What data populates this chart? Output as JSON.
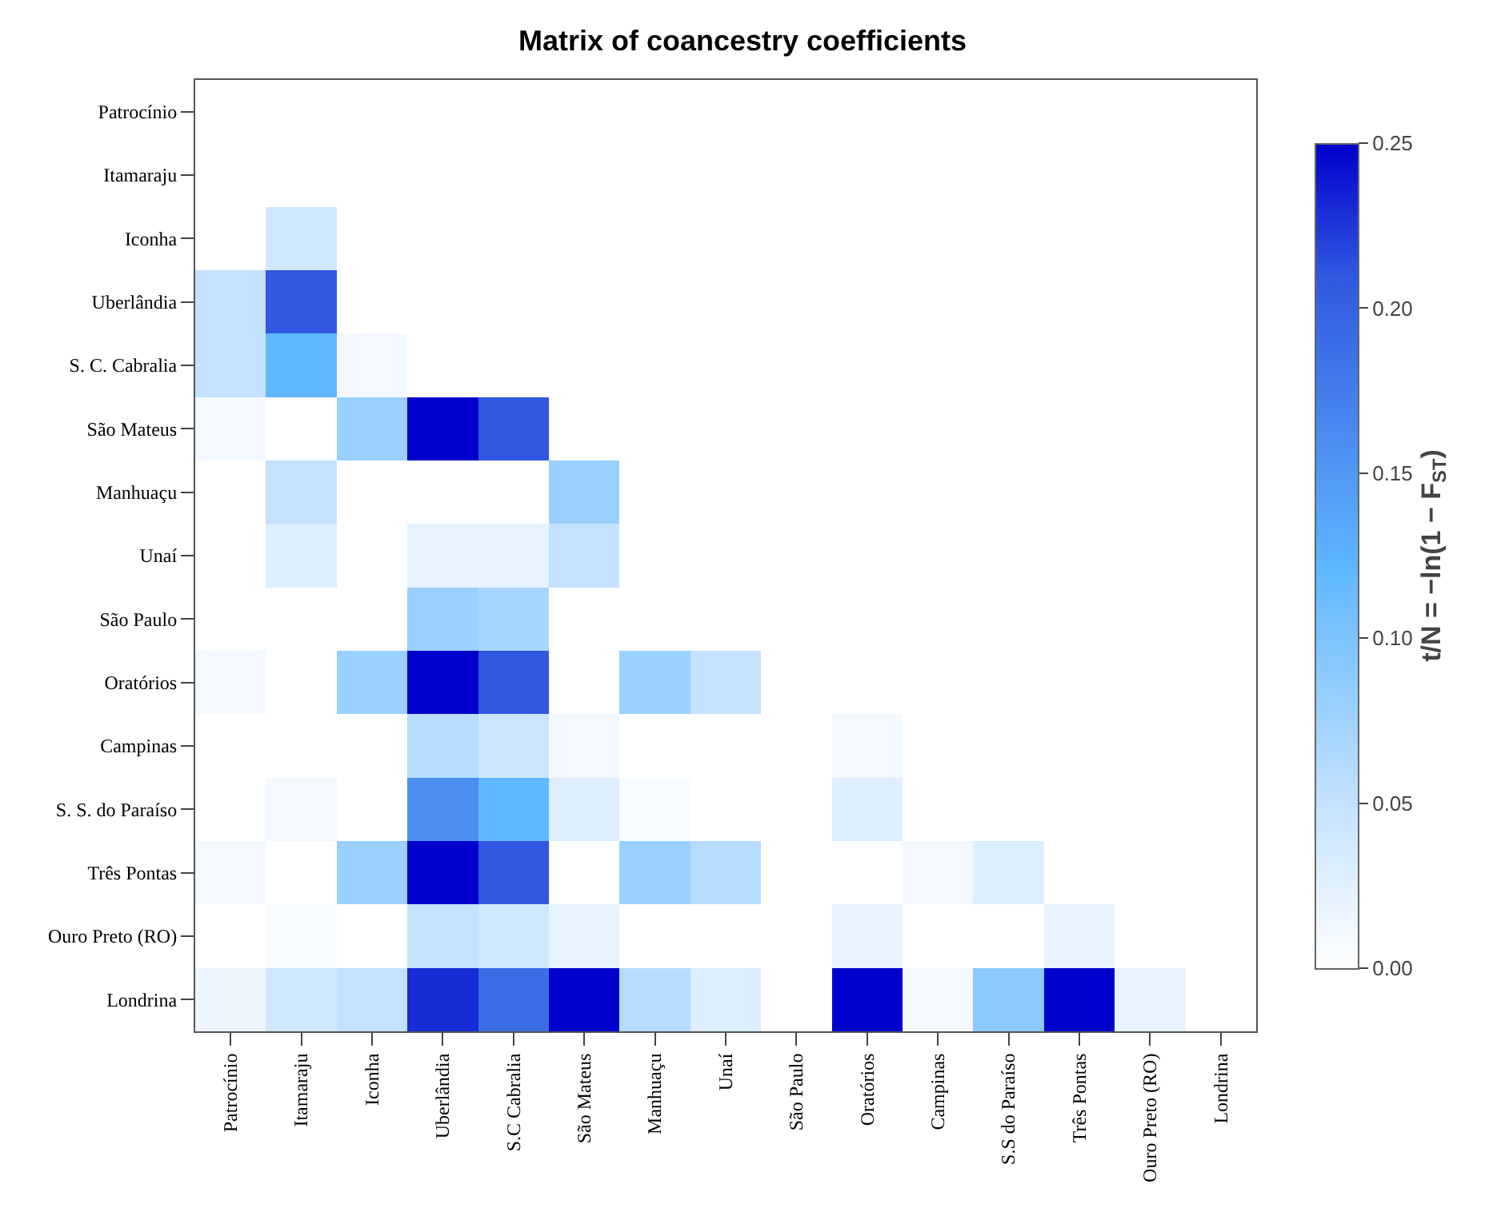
{
  "chart_data": {
    "type": "heatmap",
    "title": "Matrix of coancestry coefficients",
    "clabel": "t/N = −ln(1 − F$_{ST}$)",
    "categories": [
      "Patrocínio",
      "Itamaraju",
      "Iconha",
      "Uberlândia",
      "S.C Cabralia",
      "São Mateus",
      "Manhuaçu",
      "Unaí",
      "São Paulo",
      "Oratórios",
      "Campinas",
      "S.S do Paraíso",
      "Três Pontas",
      "Ouro Preto (RO)",
      "Londrina"
    ],
    "y_categories": [
      "Patrocínio",
      "Itamaraju",
      "Iconha",
      "Uberlândia",
      "S. C. Cabralia",
      "São Mateus",
      "Manhuaçu",
      "Unaí",
      "São Paulo",
      "Oratórios",
      "Campinas",
      "S. S. do Paraíso",
      "Três Pontas",
      "Ouro Preto (RO)",
      "Londrina"
    ],
    "cells": [
      [
        null,
        null,
        null,
        null,
        null,
        null,
        null,
        null,
        null,
        null,
        null,
        null,
        null,
        null,
        null
      ],
      [
        0,
        null,
        null,
        null,
        null,
        null,
        null,
        null,
        null,
        null,
        null,
        null,
        null,
        null,
        null
      ],
      [
        0,
        0.04,
        null,
        null,
        null,
        null,
        null,
        null,
        null,
        null,
        null,
        null,
        null,
        null,
        null
      ],
      [
        0.05,
        0.21,
        0,
        null,
        null,
        null,
        null,
        null,
        null,
        null,
        null,
        null,
        null,
        null,
        null
      ],
      [
        0.05,
        0.12,
        0.01,
        0,
        null,
        null,
        null,
        null,
        null,
        null,
        null,
        null,
        null,
        null,
        null
      ],
      [
        0.01,
        0,
        0.08,
        0.25,
        0.21,
        null,
        null,
        null,
        null,
        null,
        null,
        null,
        null,
        null,
        null
      ],
      [
        0,
        0.05,
        0,
        0,
        0,
        0.08,
        null,
        null,
        null,
        null,
        null,
        null,
        null,
        null,
        null
      ],
      [
        0,
        0.03,
        0,
        0.02,
        0.02,
        0.05,
        0,
        null,
        null,
        null,
        null,
        null,
        null,
        null,
        null
      ],
      [
        0,
        0,
        0,
        0.08,
        0.07,
        0,
        0,
        0,
        null,
        null,
        null,
        null,
        null,
        null,
        null
      ],
      [
        0.01,
        0,
        0.08,
        0.25,
        0.21,
        0,
        0.08,
        0.05,
        0,
        null,
        null,
        null,
        null,
        null,
        null
      ],
      [
        0,
        0,
        0,
        0.06,
        0.045,
        0.01,
        0,
        0,
        0,
        0.01,
        null,
        null,
        null,
        null,
        null
      ],
      [
        0,
        0.01,
        0,
        0.16,
        0.12,
        0.03,
        0.005,
        0,
        0,
        0.03,
        0,
        null,
        null,
        null,
        null
      ],
      [
        0.01,
        0,
        0.08,
        0.25,
        0.21,
        0,
        0.08,
        0.06,
        0,
        0,
        0.01,
        0.03,
        null,
        null,
        null
      ],
      [
        0,
        0.005,
        0,
        0.05,
        0.04,
        0.02,
        0,
        0,
        0,
        0.02,
        0,
        0,
        0.02,
        null,
        null
      ],
      [
        0.015,
        0.04,
        0.05,
        0.23,
        0.19,
        0.25,
        0.06,
        0.03,
        0,
        0.25,
        0.01,
        0.09,
        0.25,
        0.02,
        null
      ]
    ],
    "clim": [
      0,
      0.25
    ],
    "cticks": [
      {
        "value": 0,
        "label": "0.00"
      },
      {
        "value": 0.05,
        "label": "0.05"
      },
      {
        "value": 0.1,
        "label": "0.10"
      },
      {
        "value": 0.15,
        "label": "0.15"
      },
      {
        "value": 0.2,
        "label": "0.20"
      },
      {
        "value": 0.25,
        "label": "0.25"
      }
    ]
  }
}
